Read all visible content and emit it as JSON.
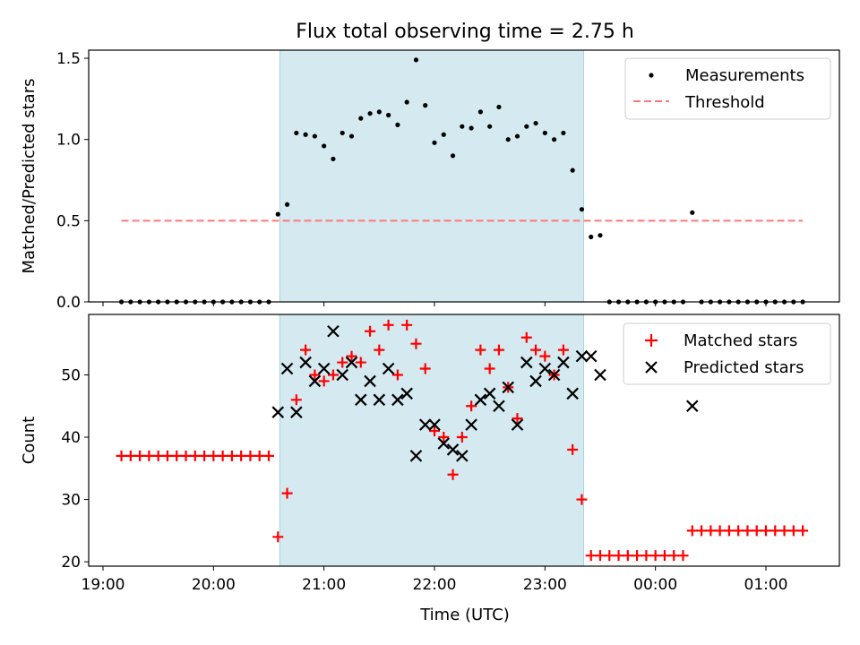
{
  "chart_data": {
    "title": "Flux total observing time = 2.75 h",
    "xlabel": "Time (UTC)",
    "x_ticks": [
      "19:00",
      "20:00",
      "21:00",
      "22:00",
      "23:00",
      "00:00",
      "01:00"
    ],
    "x_axis_type": "time",
    "observing_window": [
      "20:36",
      "23:21"
    ],
    "colors": {
      "window": "#d4eaf0",
      "window_edge": "#a8d4dc",
      "matched": "#ff0000",
      "predicted": "#000000",
      "threshold": "#ff7777",
      "measurement": "#000000"
    },
    "panels": [
      {
        "type": "scatter",
        "ylabel": "Matched/Predicted stars",
        "ylim": [
          0,
          1.55
        ],
        "y_ticks": [
          "0.0",
          "0.5",
          "1.0",
          "1.5"
        ],
        "legend": {
          "position": "top-right",
          "entries": [
            "Measurements",
            "Threshold"
          ]
        },
        "threshold": {
          "name": "Threshold",
          "value": 0.5,
          "x_range": [
            "19:10",
            "01:20"
          ]
        },
        "series": [
          {
            "name": "Measurements",
            "marker": "dot",
            "points": [
              [
                "19:10",
                0
              ],
              [
                "19:15",
                0
              ],
              [
                "19:20",
                0
              ],
              [
                "19:25",
                0
              ],
              [
                "19:30",
                0
              ],
              [
                "19:35",
                0
              ],
              [
                "19:40",
                0
              ],
              [
                "19:45",
                0
              ],
              [
                "19:50",
                0
              ],
              [
                "19:55",
                0
              ],
              [
                "20:00",
                0
              ],
              [
                "20:05",
                0
              ],
              [
                "20:10",
                0
              ],
              [
                "20:15",
                0
              ],
              [
                "20:20",
                0
              ],
              [
                "20:25",
                0
              ],
              [
                "20:30",
                0
              ],
              [
                "20:35",
                0.54
              ],
              [
                "20:40",
                0.6
              ],
              [
                "20:45",
                1.04
              ],
              [
                "20:50",
                1.03
              ],
              [
                "20:55",
                1.02
              ],
              [
                "21:00",
                0.96
              ],
              [
                "21:05",
                0.88
              ],
              [
                "21:10",
                1.04
              ],
              [
                "21:15",
                1.02
              ],
              [
                "21:20",
                1.13
              ],
              [
                "21:25",
                1.16
              ],
              [
                "21:30",
                1.17
              ],
              [
                "21:35",
                1.15
              ],
              [
                "21:40",
                1.09
              ],
              [
                "21:45",
                1.23
              ],
              [
                "21:50",
                1.49
              ],
              [
                "21:55",
                1.21
              ],
              [
                "22:00",
                0.98
              ],
              [
                "22:05",
                1.03
              ],
              [
                "22:10",
                0.9
              ],
              [
                "22:15",
                1.08
              ],
              [
                "22:20",
                1.07
              ],
              [
                "22:25",
                1.17
              ],
              [
                "22:30",
                1.08
              ],
              [
                "22:35",
                1.2
              ],
              [
                "22:40",
                1.0
              ],
              [
                "22:45",
                1.02
              ],
              [
                "22:50",
                1.08
              ],
              [
                "22:55",
                1.1
              ],
              [
                "23:00",
                1.04
              ],
              [
                "23:05",
                1.0
              ],
              [
                "23:10",
                1.04
              ],
              [
                "23:15",
                0.81
              ],
              [
                "23:20",
                0.57
              ],
              [
                "23:25",
                0.4
              ],
              [
                "23:30",
                0.41
              ],
              [
                "23:35",
                0
              ],
              [
                "23:40",
                0
              ],
              [
                "23:45",
                0
              ],
              [
                "23:50",
                0
              ],
              [
                "23:55",
                0
              ],
              [
                "00:00",
                0
              ],
              [
                "00:05",
                0
              ],
              [
                "00:10",
                0
              ],
              [
                "00:15",
                0
              ],
              [
                "00:20",
                0.55
              ],
              [
                "00:25",
                0
              ],
              [
                "00:30",
                0
              ],
              [
                "00:35",
                0
              ],
              [
                "00:40",
                0
              ],
              [
                "00:45",
                0
              ],
              [
                "00:50",
                0
              ],
              [
                "00:55",
                0
              ],
              [
                "01:00",
                0
              ],
              [
                "01:05",
                0
              ],
              [
                "01:10",
                0
              ],
              [
                "01:15",
                0
              ],
              [
                "01:20",
                0
              ]
            ]
          }
        ]
      },
      {
        "type": "scatter",
        "ylabel": "Count",
        "ylim": [
          19.3,
          59.7
        ],
        "y_ticks": [
          "20",
          "30",
          "40",
          "50"
        ],
        "legend": {
          "position": "top-right",
          "entries": [
            "Matched stars",
            "Predicted stars"
          ]
        },
        "series": [
          {
            "name": "Matched stars",
            "marker": "plus",
            "points": [
              [
                "19:10",
                37
              ],
              [
                "19:15",
                37
              ],
              [
                "19:20",
                37
              ],
              [
                "19:25",
                37
              ],
              [
                "19:30",
                37
              ],
              [
                "19:35",
                37
              ],
              [
                "19:40",
                37
              ],
              [
                "19:45",
                37
              ],
              [
                "19:50",
                37
              ],
              [
                "19:55",
                37
              ],
              [
                "20:00",
                37
              ],
              [
                "20:05",
                37
              ],
              [
                "20:10",
                37
              ],
              [
                "20:15",
                37
              ],
              [
                "20:20",
                37
              ],
              [
                "20:25",
                37
              ],
              [
                "20:30",
                37
              ],
              [
                "20:35",
                24
              ],
              [
                "20:40",
                31
              ],
              [
                "20:45",
                46
              ],
              [
                "20:50",
                54
              ],
              [
                "20:55",
                50
              ],
              [
                "21:00",
                49
              ],
              [
                "21:05",
                50
              ],
              [
                "21:10",
                52
              ],
              [
                "21:15",
                53
              ],
              [
                "21:20",
                52
              ],
              [
                "21:25",
                57
              ],
              [
                "21:30",
                54
              ],
              [
                "21:35",
                58
              ],
              [
                "21:40",
                50
              ],
              [
                "21:45",
                58
              ],
              [
                "21:50",
                55
              ],
              [
                "21:55",
                51
              ],
              [
                "22:00",
                41
              ],
              [
                "22:05",
                40
              ],
              [
                "22:10",
                34
              ],
              [
                "22:15",
                40
              ],
              [
                "22:20",
                45
              ],
              [
                "22:25",
                54
              ],
              [
                "22:30",
                51
              ],
              [
                "22:35",
                54
              ],
              [
                "22:40",
                48
              ],
              [
                "22:45",
                43
              ],
              [
                "22:50",
                56
              ],
              [
                "22:55",
                54
              ],
              [
                "23:00",
                53
              ],
              [
                "23:05",
                50
              ],
              [
                "23:10",
                54
              ],
              [
                "23:15",
                38
              ],
              [
                "23:20",
                30
              ],
              [
                "23:25",
                21
              ],
              [
                "23:30",
                21
              ],
              [
                "23:35",
                21
              ],
              [
                "23:40",
                21
              ],
              [
                "23:45",
                21
              ],
              [
                "23:50",
                21
              ],
              [
                "23:55",
                21
              ],
              [
                "00:00",
                21
              ],
              [
                "00:05",
                21
              ],
              [
                "00:10",
                21
              ],
              [
                "00:15",
                21
              ],
              [
                "00:20",
                25
              ],
              [
                "00:25",
                25
              ],
              [
                "00:30",
                25
              ],
              [
                "00:35",
                25
              ],
              [
                "00:40",
                25
              ],
              [
                "00:45",
                25
              ],
              [
                "00:50",
                25
              ],
              [
                "00:55",
                25
              ],
              [
                "01:00",
                25
              ],
              [
                "01:05",
                25
              ],
              [
                "01:10",
                25
              ],
              [
                "01:15",
                25
              ],
              [
                "01:20",
                25
              ]
            ]
          },
          {
            "name": "Predicted stars",
            "marker": "x",
            "points": [
              [
                "20:35",
                44
              ],
              [
                "20:40",
                51
              ],
              [
                "20:45",
                44
              ],
              [
                "20:50",
                52
              ],
              [
                "20:55",
                49
              ],
              [
                "21:00",
                51
              ],
              [
                "21:05",
                57
              ],
              [
                "21:10",
                50
              ],
              [
                "21:15",
                52
              ],
              [
                "21:20",
                46
              ],
              [
                "21:25",
                49
              ],
              [
                "21:30",
                46
              ],
              [
                "21:35",
                51
              ],
              [
                "21:40",
                46
              ],
              [
                "21:45",
                47
              ],
              [
                "21:50",
                37
              ],
              [
                "21:55",
                42
              ],
              [
                "22:00",
                42
              ],
              [
                "22:05",
                39
              ],
              [
                "22:10",
                38
              ],
              [
                "22:15",
                37
              ],
              [
                "22:20",
                42
              ],
              [
                "22:25",
                46
              ],
              [
                "22:30",
                47
              ],
              [
                "22:35",
                45
              ],
              [
                "22:40",
                48
              ],
              [
                "22:45",
                42
              ],
              [
                "22:50",
                52
              ],
              [
                "22:55",
                49
              ],
              [
                "23:00",
                51
              ],
              [
                "23:05",
                50
              ],
              [
                "23:10",
                52
              ],
              [
                "23:15",
                47
              ],
              [
                "23:20",
                53
              ],
              [
                "23:25",
                53
              ],
              [
                "23:30",
                50
              ],
              [
                "00:20",
                45
              ]
            ]
          }
        ]
      }
    ]
  }
}
